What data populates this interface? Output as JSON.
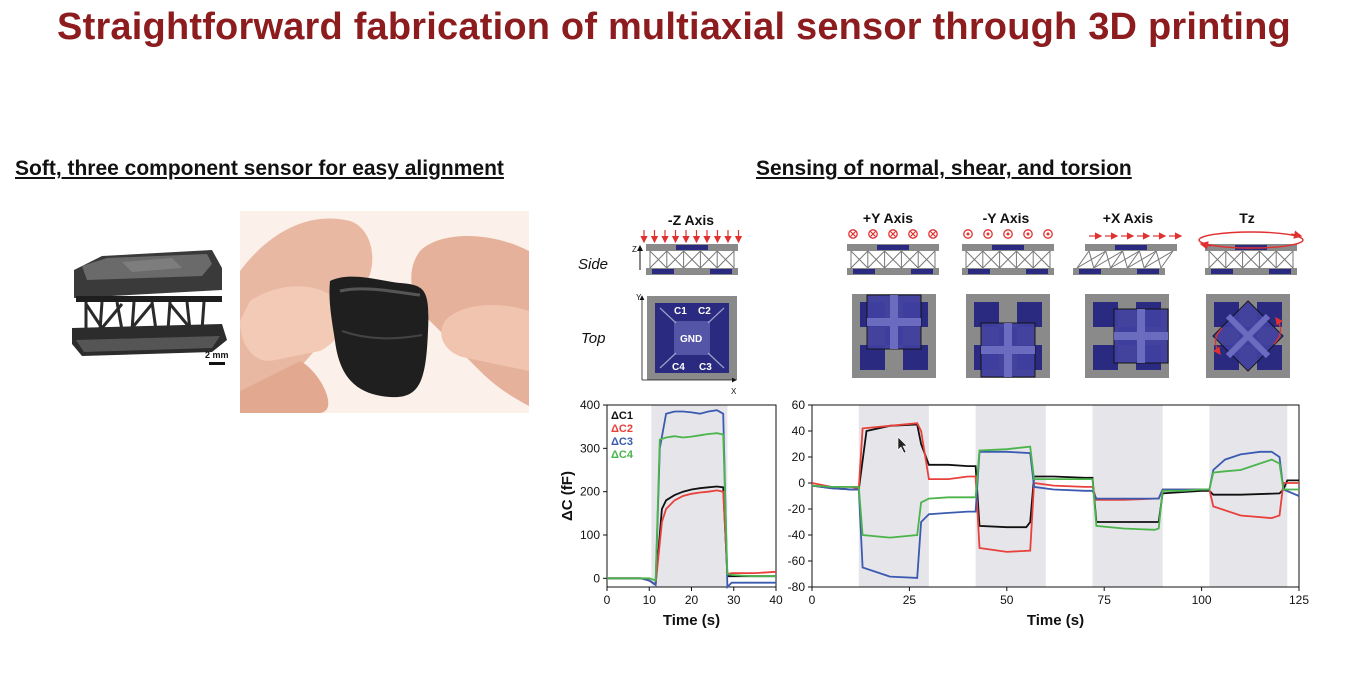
{
  "slide": {
    "title": "Straightforward fabrication of multiaxial sensor through 3D printing",
    "left_heading": "Soft, three component sensor for easy alignment",
    "right_heading": "Sensing of normal, shear, and torsion",
    "scale_bar_label": "2 mm"
  },
  "diagrams": {
    "row_side_label": "Side",
    "row_top_label": "Top",
    "axes": [
      "-Z Axis",
      "+Y Axis",
      "-Y Axis",
      "+X Axis",
      "Tz"
    ],
    "electrodes": [
      "C1",
      "C2",
      "GND",
      "C4",
      "C3"
    ],
    "side_axis_letter": "Z",
    "top_axis_y": "Y",
    "top_axis_x": "X"
  },
  "colors": {
    "title": "#8c1c1e",
    "C1": "#111111",
    "C2": "#e8413c",
    "C3": "#3a5bb0",
    "C4": "#4cb44c",
    "electrode": "#2a2a80",
    "frame": "#8a8a8a",
    "shade": "#e6e6ea"
  },
  "chart_data": [
    {
      "type": "line",
      "xlabel": "Time (s)",
      "ylabel": "ΔC (fF)",
      "xlim": [
        0,
        40
      ],
      "ylim": [
        -20,
        400
      ],
      "xticks": [
        0,
        10,
        20,
        30,
        40
      ],
      "yticks": [
        0,
        100,
        200,
        300,
        400
      ],
      "shaded_intervals": [
        [
          10.5,
          28.5
        ]
      ],
      "legend_position": "top-left",
      "series": [
        {
          "name": "ΔC1",
          "color_key": "C1",
          "x": [
            0,
            8,
            10,
            11.5,
            13,
            14,
            16,
            18,
            20,
            22,
            24,
            26,
            27.5,
            28.5,
            29.5,
            32,
            35,
            40
          ],
          "y": [
            0,
            0,
            -5,
            -15,
            160,
            180,
            192,
            200,
            205,
            208,
            210,
            212,
            210,
            5,
            5,
            5,
            5,
            5
          ]
        },
        {
          "name": "ΔC2",
          "color_key": "C2",
          "x": [
            0,
            8,
            10,
            11.5,
            13,
            14,
            16,
            18,
            20,
            22,
            24,
            26,
            27.5,
            28.5,
            29.5,
            32,
            35,
            40
          ],
          "y": [
            0,
            0,
            -5,
            -15,
            130,
            160,
            180,
            190,
            195,
            198,
            200,
            203,
            200,
            10,
            12,
            12,
            12,
            15
          ]
        },
        {
          "name": "ΔC3",
          "color_key": "C3",
          "x": [
            0,
            8,
            10,
            11.5,
            12.5,
            14,
            16,
            18,
            20,
            22,
            24,
            26,
            27.5,
            28.5,
            29.5,
            32,
            35,
            40
          ],
          "y": [
            0,
            0,
            -5,
            -15,
            300,
            380,
            385,
            385,
            383,
            380,
            385,
            388,
            380,
            -20,
            -10,
            -10,
            -10,
            -10
          ]
        },
        {
          "name": "ΔC4",
          "color_key": "C4",
          "x": [
            0,
            8,
            10,
            11.5,
            12.5,
            14,
            16,
            18,
            20,
            22,
            24,
            26,
            27.5,
            28.5,
            29.5,
            32,
            35,
            40
          ],
          "y": [
            0,
            0,
            0,
            -5,
            320,
            325,
            328,
            325,
            327,
            330,
            333,
            335,
            332,
            10,
            8,
            6,
            5,
            5
          ]
        }
      ]
    },
    {
      "type": "line",
      "xlabel": "Time (s)",
      "ylabel": "",
      "xlim": [
        0,
        125
      ],
      "ylim": [
        -80,
        60
      ],
      "xticks": [
        0,
        25,
        50,
        75,
        100,
        125
      ],
      "yticks": [
        -80,
        -60,
        -40,
        -20,
        0,
        20,
        40,
        60
      ],
      "shaded_intervals": [
        [
          12,
          30
        ],
        [
          42,
          60
        ],
        [
          72,
          90
        ],
        [
          102,
          122
        ]
      ],
      "series": [
        {
          "name": "ΔC1",
          "color_key": "C1",
          "x": [
            0,
            5,
            10,
            12,
            14,
            20,
            27,
            28,
            30,
            35,
            40,
            42,
            43,
            50,
            55,
            56,
            57,
            62,
            70,
            72,
            73,
            80,
            88,
            89,
            90,
            95,
            100,
            102,
            103,
            110,
            120,
            121,
            122,
            125
          ],
          "y": [
            -2,
            -4,
            -5,
            -5,
            40,
            44,
            45,
            30,
            14,
            14,
            13,
            13,
            -33,
            -34,
            -34,
            -30,
            5,
            5,
            4,
            4,
            -30,
            -30,
            -30,
            -30,
            -8,
            -7,
            -6,
            -6,
            -9,
            -9,
            -8,
            -5,
            2,
            2
          ]
        },
        {
          "name": "ΔC2",
          "color_key": "C2",
          "x": [
            0,
            5,
            10,
            12,
            13,
            20,
            27,
            28,
            30,
            35,
            40,
            42,
            43,
            50,
            56,
            57,
            62,
            70,
            72,
            73,
            80,
            88,
            89,
            90,
            95,
            100,
            102,
            103,
            110,
            118,
            120,
            121,
            125
          ],
          "y": [
            0,
            -3,
            -3,
            -4,
            42,
            44,
            46,
            40,
            3,
            3,
            5,
            5,
            -50,
            -53,
            -52,
            0,
            -2,
            -3,
            -3,
            -13,
            -13,
            -12,
            -12,
            -5,
            -5,
            -5,
            -5,
            -18,
            -25,
            -27,
            -25,
            0,
            0
          ]
        },
        {
          "name": "ΔC3",
          "color_key": "C3",
          "x": [
            0,
            5,
            10,
            12,
            13,
            20,
            27,
            28,
            30,
            35,
            40,
            42,
            43,
            50,
            56,
            57,
            62,
            70,
            72,
            73,
            80,
            88,
            89,
            90,
            95,
            100,
            102,
            103,
            106,
            110,
            115,
            118,
            120,
            121,
            125
          ],
          "y": [
            -2,
            -4,
            -5,
            -5,
            -65,
            -72,
            -73,
            -30,
            -24,
            -23,
            -22,
            -22,
            24,
            24,
            23,
            -3,
            -5,
            -6,
            -6,
            -12,
            -12,
            -12,
            -12,
            -5,
            -5,
            -5,
            -5,
            10,
            18,
            22,
            24,
            24,
            20,
            -5,
            -10
          ]
        },
        {
          "name": "ΔC4",
          "color_key": "C4",
          "x": [
            0,
            5,
            10,
            12,
            13,
            20,
            27,
            28,
            30,
            35,
            40,
            42,
            43,
            50,
            56,
            57,
            62,
            70,
            72,
            73,
            80,
            88,
            89,
            90,
            95,
            100,
            102,
            103,
            106,
            110,
            115,
            118,
            120,
            121,
            125
          ],
          "y": [
            -2,
            -3,
            -3,
            -3,
            -40,
            -42,
            -40,
            -15,
            -12,
            -11,
            -11,
            -11,
            25,
            26,
            28,
            3,
            3,
            3,
            3,
            -33,
            -35,
            -36,
            -35,
            -6,
            -6,
            -5,
            -5,
            8,
            9,
            10,
            15,
            18,
            15,
            -5,
            -5
          ]
        }
      ]
    }
  ]
}
